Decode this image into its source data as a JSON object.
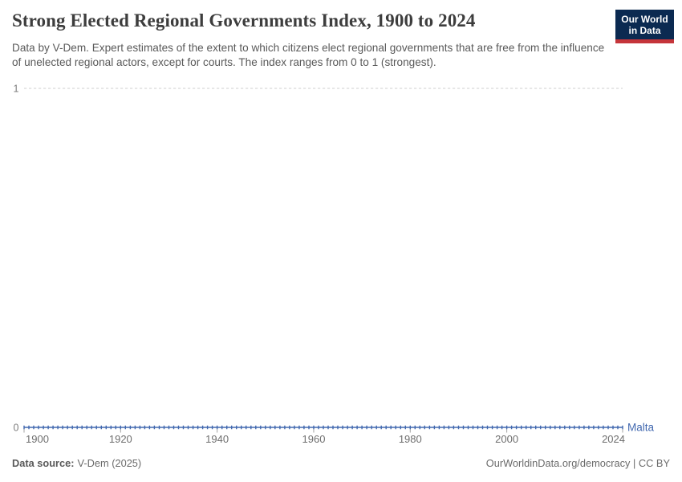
{
  "header": {
    "title": "Strong Elected Regional Governments Index, 1900 to 2024",
    "subtitle": "Data by V-Dem. Expert estimates of the extent to which citizens elect regional governments that are free from the influence of unelected regional actors, except for courts. The index ranges from 0 to 1 (strongest).",
    "logo": {
      "line1": "Our World",
      "line2": "in Data",
      "background_color": "#0b2a51",
      "stripe_color": "#c5353a"
    }
  },
  "chart_data": {
    "type": "line",
    "title": "Strong Elected Regional Governments Index, 1900 to 2024",
    "xlabel": "",
    "ylabel": "",
    "xlim": [
      1900,
      2024
    ],
    "ylim": [
      0,
      1
    ],
    "x_ticks": [
      1900,
      1920,
      1940,
      1960,
      1980,
      2000,
      2024
    ],
    "x_tick_labels": [
      "1900",
      "1920",
      "1940",
      "1960",
      "1980",
      "2000",
      "2024"
    ],
    "y_ticks": [
      0,
      1
    ],
    "y_tick_labels": [
      "0",
      "1"
    ],
    "grid": "dashed horizontal gridline at y=1 only",
    "legend_position": "end-of-line label",
    "marker_style": "small vertical dash at every yearly data point",
    "series": [
      {
        "name": "Malta",
        "color": "#4168af",
        "x_start": 1900,
        "x_end": 2024,
        "x_step": 1,
        "constant_value": 0,
        "description": "Index value is 0 for every year from 1900 to 2024 (flat line at y=0)"
      }
    ]
  },
  "footer": {
    "source_label": "Data source:",
    "source_value": "V-Dem (2025)",
    "right_text": "OurWorldinData.org/democracy | CC BY"
  },
  "colors": {
    "accent_line": "#4168af",
    "gridline": "#cfcfcf",
    "axis_tick": "#a3a3a3",
    "axis_label": "#6e6e6e",
    "title_text": "#3d3d3d",
    "subtitle_text": "#595959",
    "footer_text": "#6b6b6b"
  }
}
